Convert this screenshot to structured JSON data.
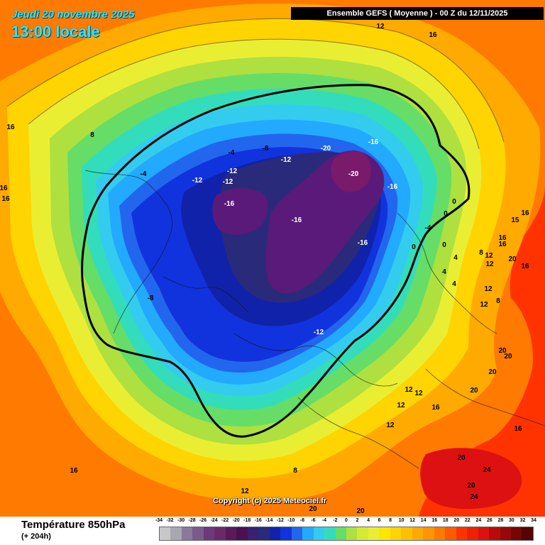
{
  "header": {
    "date": "Jeudi 20 novembre 2025",
    "local_time": "13:00 locale",
    "run": "Ensemble GEFS  ( Moyenne )  -  00 Z du 12/11/2025"
  },
  "map": {
    "copyright": "Copyright (c) 2025 Meteociel.fr",
    "contour_labels": [
      "12",
      "16",
      "16",
      "16",
      "16",
      "8",
      "-4",
      "-8",
      "-12",
      "-12",
      "-4",
      "-12",
      "-12",
      "-16",
      "-20",
      "-16",
      "-20",
      "-16",
      "-16",
      "-16",
      "-8",
      "-12",
      "0",
      "0",
      "0",
      "-4",
      "0",
      "4",
      "4",
      "4",
      "8",
      "12",
      "16",
      "12",
      "15",
      "16",
      "16",
      "20",
      "16",
      "12",
      "8",
      "12",
      "20",
      "20",
      "20",
      "20",
      "12",
      "16",
      "12",
      "12",
      "16",
      "12",
      "20",
      "24",
      "20",
      "24",
      "8",
      "12",
      "16",
      "20",
      "20"
    ],
    "colors": {
      "plus24": "#dd1111",
      "plus20": "#ff3300",
      "plus16": "#ff7a00",
      "plus12": "#ffaa00",
      "plus8": "#ffd400",
      "plus4": "#eaee33",
      "zero": "#aee040",
      "minus2": "#66dd66",
      "minus4": "#33ddbb",
      "minus6": "#33ccee",
      "minus8": "#22aaff",
      "minus10": "#2266ee",
      "minus12": "#1133dd",
      "minus14": "#1122aa",
      "minus16": "#2a2a7a",
      "minus18": "#5a1a7a",
      "minus20": "#7a1a6a"
    }
  },
  "footer": {
    "product": "Température 850hPa",
    "lead": "(+ 204h)"
  },
  "legend": {
    "labels": [
      "-34",
      "-32",
      "-30",
      "-28",
      "-26",
      "-24",
      "-22",
      "-20",
      "-18",
      "-16",
      "-14",
      "-12",
      "-10",
      "-8",
      "-6",
      "-4",
      "-2",
      "0",
      "2",
      "4",
      "6",
      "8",
      "10",
      "12",
      "14",
      "16",
      "18",
      "20",
      "22",
      "24",
      "26",
      "28",
      "30",
      "32",
      "34"
    ],
    "colors": [
      "#c8c8c8",
      "#a8a8b0",
      "#8a7a9a",
      "#7a5a8a",
      "#6a3a7a",
      "#6a2a6a",
      "#5a1a5a",
      "#4a1050",
      "#3a2070",
      "#2a2a7a",
      "#1122aa",
      "#1133dd",
      "#2266ee",
      "#22aaff",
      "#33ccee",
      "#33ddbb",
      "#66dd66",
      "#aee040",
      "#d4ea33",
      "#eaee33",
      "#ffe600",
      "#ffd400",
      "#ffc000",
      "#ffaa00",
      "#ff9500",
      "#ff7a00",
      "#ff5a00",
      "#ff3300",
      "#ee2200",
      "#dd1111",
      "#bb0a0a",
      "#990808",
      "#770505",
      "#550303"
    ]
  }
}
